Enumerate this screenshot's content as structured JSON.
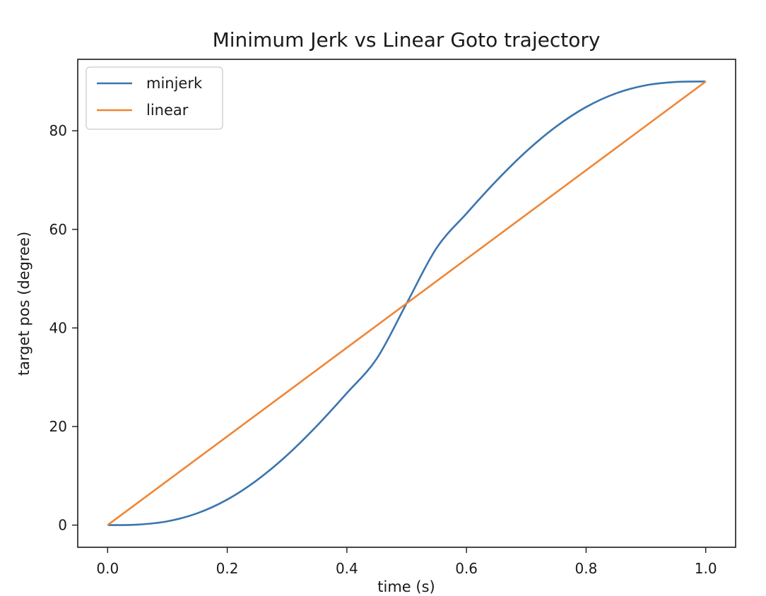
{
  "colors": {
    "minjerk": "#3b75af",
    "linear": "#ef8636",
    "axes": "#1a1a1a"
  },
  "chart_data": {
    "type": "line",
    "title": "Minimum Jerk vs Linear Goto trajectory",
    "xlabel": "time (s)",
    "ylabel": "target pos (degree)",
    "xlim": [
      -0.05,
      1.05
    ],
    "ylim": [
      -4.5,
      94.5
    ],
    "xticks": [
      0.0,
      0.2,
      0.4,
      0.6,
      0.8,
      1.0
    ],
    "xtick_labels": [
      "0.0",
      "0.2",
      "0.4",
      "0.6",
      "0.8",
      "1.0"
    ],
    "yticks": [
      0,
      20,
      40,
      60,
      80
    ],
    "ytick_labels": [
      "0",
      "20",
      "40",
      "60",
      "80"
    ],
    "grid": false,
    "legend": "upper-left",
    "series": [
      {
        "name": "minjerk",
        "x": [
          0.0,
          0.05,
          0.1,
          0.15,
          0.2,
          0.25,
          0.3,
          0.35,
          0.4,
          0.45,
          0.5,
          0.55,
          0.6,
          0.65,
          0.7,
          0.75,
          0.8,
          0.85,
          0.9,
          0.95,
          1.0
        ],
        "y": [
          0.0,
          0.1,
          0.77,
          2.4,
          5.18,
          9.14,
          14.18,
          20.15,
          26.78,
          33.78,
          45.0,
          56.22,
          63.22,
          69.85,
          75.82,
          80.86,
          84.82,
          87.6,
          89.23,
          89.9,
          90.0
        ]
      },
      {
        "name": "linear",
        "x": [
          0.0,
          1.0
        ],
        "y": [
          0.0,
          90.0
        ]
      }
    ]
  }
}
